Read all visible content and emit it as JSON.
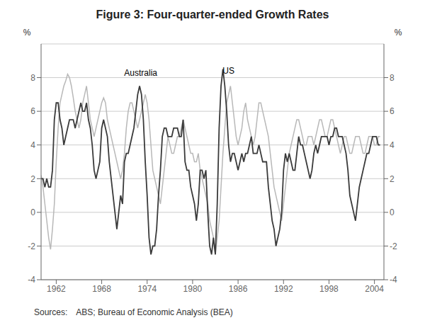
{
  "chart_data": {
    "type": "line",
    "title": "Figure 3: Four-quarter-ended Growth Rates",
    "source": "Sources:  ABS; Bureau of Economic Analysis (BEA)",
    "ylabel": "%",
    "y2label": "%",
    "x": [
      1960,
      1960.25,
      1960.5,
      1960.75,
      1961,
      1961.25,
      1961.5,
      1961.75,
      1962,
      1962.25,
      1962.5,
      1962.75,
      1963,
      1963.25,
      1963.5,
      1963.75,
      1964,
      1964.25,
      1964.5,
      1964.75,
      1965,
      1965.25,
      1965.5,
      1965.75,
      1966,
      1966.25,
      1966.5,
      1966.75,
      1967,
      1967.25,
      1967.5,
      1967.75,
      1968,
      1968.25,
      1968.5,
      1968.75,
      1969,
      1969.25,
      1969.5,
      1969.75,
      1970,
      1970.25,
      1970.5,
      1970.75,
      1971,
      1971.25,
      1971.5,
      1971.75,
      1972,
      1972.25,
      1972.5,
      1972.75,
      1973,
      1973.25,
      1973.5,
      1973.75,
      1974,
      1974.25,
      1974.5,
      1974.75,
      1975,
      1975.25,
      1975.5,
      1975.75,
      1976,
      1976.25,
      1976.5,
      1976.75,
      1977,
      1977.25,
      1977.5,
      1977.75,
      1978,
      1978.25,
      1978.5,
      1978.75,
      1979,
      1979.25,
      1979.5,
      1979.75,
      1980,
      1980.25,
      1980.5,
      1980.75,
      1981,
      1981.25,
      1981.5,
      1981.75,
      1982,
      1982.25,
      1982.5,
      1982.75,
      1983,
      1983.25,
      1983.5,
      1983.75,
      1984,
      1984.25,
      1984.5,
      1984.75,
      1985,
      1985.25,
      1985.5,
      1985.75,
      1986,
      1986.25,
      1986.5,
      1986.75,
      1987,
      1987.25,
      1987.5,
      1987.75,
      1988,
      1988.25,
      1988.5,
      1988.75,
      1989,
      1989.25,
      1989.5,
      1989.75,
      1990,
      1990.25,
      1990.5,
      1990.75,
      1991,
      1991.25,
      1991.5,
      1991.75,
      1992,
      1992.25,
      1992.5,
      1992.75,
      1993,
      1993.25,
      1993.5,
      1993.75,
      1994,
      1994.25,
      1994.5,
      1994.75,
      1995,
      1995.25,
      1995.5,
      1995.75,
      1996,
      1996.25,
      1996.5,
      1996.75,
      1997,
      1997.25,
      1997.5,
      1997.75,
      1998,
      1998.25,
      1998.5,
      1998.75,
      1999,
      1999.25,
      1999.5,
      1999.75,
      2000,
      2000.25,
      2000.5,
      2000.75,
      2001,
      2001.25,
      2001.5,
      2001.75,
      2002,
      2002.25,
      2002.5,
      2002.75,
      2003,
      2003.25,
      2003.5,
      2003.75,
      2004,
      2004.25,
      2004.5,
      2004.75
    ],
    "xlim": [
      1960.0,
      2005.25
    ],
    "xticks": [
      1962,
      1968,
      1974,
      1980,
      1986,
      1992,
      1998,
      2004
    ],
    "ylim": [
      -4,
      10
    ],
    "yticks": [
      -4,
      -2,
      0,
      2,
      4,
      6,
      8
    ],
    "y2lim": [
      -4,
      10
    ],
    "y2ticks": [
      -4,
      -2,
      0,
      2,
      4,
      6,
      8
    ],
    "grid": true,
    "series": [
      {
        "name": "Australia",
        "color": "#b8b8b8",
        "values": [
          2.2,
          1.5,
          0.5,
          -0.5,
          -1.5,
          -2.2,
          -1.0,
          0.5,
          3.0,
          5.0,
          6.5,
          7.0,
          7.5,
          7.8,
          8.2,
          8.0,
          7.5,
          6.8,
          6.0,
          5.5,
          5.0,
          5.5,
          6.5,
          7.0,
          7.5,
          6.5,
          5.5,
          5.0,
          4.5,
          5.0,
          5.5,
          6.0,
          6.5,
          6.8,
          6.5,
          5.5,
          5.0,
          4.5,
          4.0,
          3.5,
          3.0,
          2.5,
          2.0,
          2.5,
          3.5,
          5.0,
          6.0,
          6.5,
          6.5,
          6.0,
          5.5,
          5.0,
          5.5,
          6.0,
          6.5,
          7.0,
          6.5,
          5.5,
          4.0,
          2.5,
          2.0,
          1.5,
          1.0,
          0.5,
          1.5,
          2.5,
          3.5,
          4.5,
          4.0,
          3.5,
          3.5,
          4.0,
          4.5,
          4.5,
          5.0,
          5.5,
          5.0,
          4.5,
          4.0,
          3.5,
          3.5,
          3.0,
          3.0,
          3.5,
          2.5,
          2.0,
          1.5,
          1.0,
          0.5,
          -0.5,
          -1.0,
          -1.5,
          -2.5,
          -1.5,
          -0.5,
          1.5,
          3.5,
          5.0,
          6.5,
          7.0,
          7.5,
          6.5,
          5.5,
          4.5,
          4.0,
          4.5,
          5.0,
          6.0,
          6.5,
          5.5,
          5.0,
          4.5,
          4.0,
          4.5,
          5.5,
          6.5,
          6.5,
          6.0,
          5.5,
          5.0,
          4.5,
          3.5,
          2.5,
          1.5,
          1.0,
          0.5,
          0.0,
          -0.5,
          0.5,
          1.5,
          2.5,
          3.5,
          4.0,
          4.5,
          5.0,
          5.5,
          5.5,
          5.0,
          4.5,
          4.0,
          4.0,
          4.5,
          4.5,
          4.5,
          4.0,
          4.5,
          5.0,
          5.5,
          5.5,
          5.0,
          4.5,
          4.5,
          5.0,
          5.5,
          5.5,
          5.0,
          4.5,
          4.0,
          3.5,
          4.0,
          4.5,
          4.5,
          4.0,
          3.5,
          3.5,
          4.0,
          4.5,
          4.5,
          4.5,
          4.0,
          3.5,
          3.5,
          4.0,
          4.5,
          4.5,
          4.5,
          4.0,
          4.0,
          4.5,
          4.5
        ]
      },
      {
        "name": "US",
        "color": "#3a3a3a",
        "values": [
          2.0,
          2.0,
          1.5,
          2.0,
          1.5,
          1.5,
          2.5,
          5.5,
          6.5,
          6.5,
          5.5,
          5.0,
          4.0,
          4.5,
          5.0,
          5.5,
          5.5,
          5.5,
          5.0,
          5.5,
          6.0,
          6.5,
          6.0,
          6.0,
          6.5,
          5.5,
          5.0,
          4.0,
          2.5,
          2.0,
          2.5,
          3.0,
          5.0,
          5.5,
          5.0,
          4.5,
          3.0,
          2.0,
          1.0,
          0.0,
          -1.0,
          0.0,
          1.0,
          0.5,
          3.0,
          3.5,
          3.5,
          4.0,
          4.5,
          5.0,
          6.0,
          7.0,
          7.5,
          7.0,
          5.5,
          3.0,
          1.0,
          -1.5,
          -2.5,
          -2.0,
          -2.0,
          -1.0,
          1.0,
          2.5,
          4.5,
          5.0,
          5.0,
          4.5,
          4.5,
          4.5,
          5.0,
          5.0,
          5.0,
          4.5,
          4.5,
          5.5,
          3.0,
          2.5,
          2.5,
          1.5,
          1.0,
          0.5,
          -0.5,
          0.5,
          2.5,
          2.5,
          2.0,
          2.5,
          0.0,
          -2.0,
          -2.5,
          -1.5,
          -2.5,
          0.5,
          5.0,
          7.5,
          8.5,
          7.5,
          6.0,
          4.0,
          3.0,
          3.5,
          3.5,
          3.0,
          2.5,
          3.0,
          3.5,
          3.0,
          3.5,
          3.5,
          4.0,
          4.5,
          3.5,
          3.5,
          3.5,
          4.0,
          3.5,
          3.0,
          3.0,
          3.0,
          1.5,
          0.5,
          -0.5,
          -1.0,
          -2.0,
          -1.5,
          -1.0,
          0.0,
          2.5,
          3.5,
          3.0,
          3.5,
          3.0,
          2.5,
          2.5,
          3.5,
          4.5,
          4.0,
          4.0,
          3.5,
          3.0,
          2.5,
          2.0,
          2.5,
          3.5,
          4.0,
          3.5,
          4.0,
          4.5,
          4.5,
          4.5,
          4.5,
          4.0,
          4.5,
          4.5,
          5.0,
          5.0,
          4.5,
          4.5,
          4.5,
          4.0,
          3.5,
          2.5,
          1.0,
          0.5,
          0.0,
          -0.5,
          0.5,
          1.5,
          2.0,
          2.5,
          3.0,
          3.5,
          3.5,
          4.0,
          4.5,
          4.5,
          4.5,
          4.0,
          4.0
        ]
      }
    ],
    "annotations": [
      {
        "text": "Australia",
        "x": 1970.5,
        "y": 8.3
      },
      {
        "text": "US",
        "x": 1983.5,
        "y": 8.4
      }
    ]
  }
}
